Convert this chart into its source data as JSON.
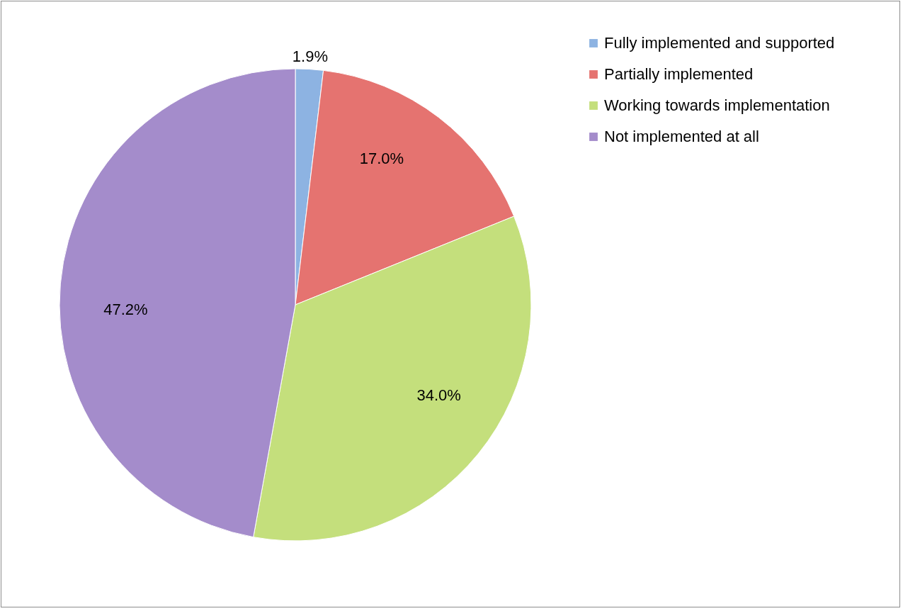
{
  "chart_data": {
    "type": "pie",
    "categories": [
      "Fully implemented and supported",
      "Partially implemented",
      "Working towards implementation",
      "Not implemented at all"
    ],
    "values": [
      1.9,
      17.0,
      34.0,
      47.2
    ],
    "value_labels": [
      "1.9%",
      "17.0%",
      "34.0%",
      "47.2%"
    ],
    "colors": [
      "#8db3e2",
      "#e57370",
      "#c4df7c",
      "#a48ccb"
    ],
    "legend": "right"
  }
}
